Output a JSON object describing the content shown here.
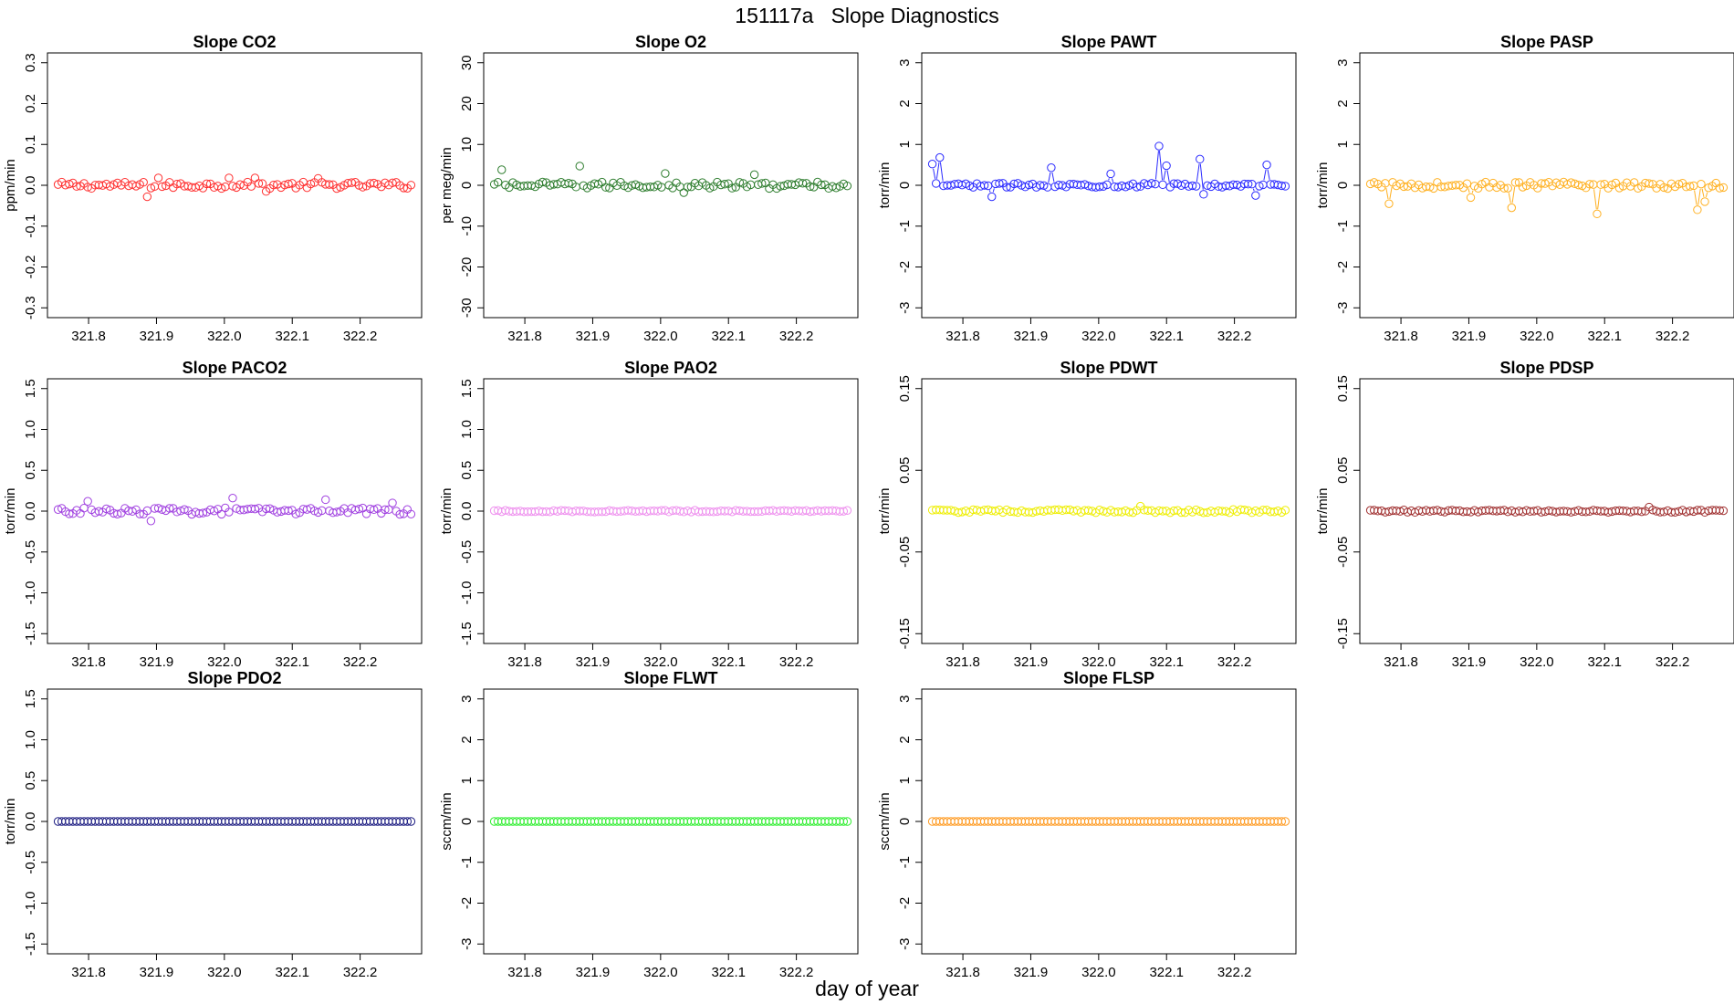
{
  "figure": {
    "title": "151117a   Slope Diagnostics",
    "xlabel": "day of year"
  },
  "chart_data": [
    {
      "type": "scatter",
      "title": "Slope CO2",
      "ylabel": "ppm/min",
      "color": "#ff3030",
      "ylim": [
        -0.3,
        0.3
      ],
      "yticks": [
        -0.3,
        -0.2,
        -0.1,
        0.0,
        0.1,
        0.2,
        0.3
      ],
      "xlim": [
        321.75,
        322.28
      ],
      "xticks": [
        321.8,
        321.9,
        322.0,
        322.1,
        322.2
      ],
      "connect": false,
      "noise": 0.008,
      "spikes": [
        [
          321.888,
          -0.028
        ],
        [
          321.905,
          0.018
        ],
        [
          322.008,
          0.018
        ],
        [
          322.045,
          0.018
        ],
        [
          322.06,
          -0.015
        ],
        [
          322.14,
          0.017
        ]
      ]
    },
    {
      "type": "scatter",
      "title": "Slope O2",
      "ylabel": "per meg/min",
      "color": "#2e7d2e",
      "ylim": [
        -30,
        30
      ],
      "yticks": [
        -30,
        -20,
        -10,
        0,
        10,
        20,
        30
      ],
      "xlim": [
        321.75,
        322.28
      ],
      "xticks": [
        321.8,
        321.9,
        322.0,
        322.1,
        322.2
      ],
      "connect": false,
      "noise": 0.8,
      "spikes": [
        [
          321.765,
          3.8
        ],
        [
          321.88,
          4.7
        ],
        [
          322.006,
          2.9
        ],
        [
          322.14,
          2.6
        ],
        [
          322.035,
          -1.8
        ]
      ]
    },
    {
      "type": "scatter",
      "title": "Slope PAWT",
      "ylabel": "torr/min",
      "color": "#2a2aff",
      "ylim": [
        -3,
        3
      ],
      "yticks": [
        -3,
        -2,
        -1,
        0,
        1,
        2,
        3
      ],
      "xlim": [
        321.75,
        322.28
      ],
      "xticks": [
        321.8,
        321.9,
        322.0,
        322.1,
        322.2
      ],
      "connect": true,
      "noise": 0.05,
      "spikes": [
        [
          321.755,
          0.52
        ],
        [
          321.767,
          0.68
        ],
        [
          321.845,
          -0.28
        ],
        [
          321.93,
          0.43
        ],
        [
          322.02,
          0.28
        ],
        [
          322.09,
          0.96
        ],
        [
          322.102,
          0.48
        ],
        [
          322.148,
          0.64
        ],
        [
          322.152,
          -0.22
        ],
        [
          322.245,
          0.5
        ],
        [
          322.23,
          -0.25
        ]
      ]
    },
    {
      "type": "scatter",
      "title": "Slope PASP",
      "ylabel": "torr/min",
      "color": "#ffb020",
      "ylim": [
        -3,
        3
      ],
      "yticks": [
        -3,
        -2,
        -1,
        0,
        1,
        2,
        3
      ],
      "xlim": [
        321.75,
        322.28
      ],
      "xticks": [
        321.8,
        321.9,
        322.0,
        322.1,
        322.2
      ],
      "connect": true,
      "noise": 0.08,
      "spikes": [
        [
          321.78,
          -0.45
        ],
        [
          321.965,
          -0.55
        ],
        [
          322.09,
          -0.7
        ],
        [
          322.235,
          -0.6
        ],
        [
          322.245,
          -0.4
        ],
        [
          321.905,
          -0.3
        ]
      ]
    },
    {
      "type": "scatter",
      "title": "Slope PACO2",
      "ylabel": "torr/min",
      "color": "#a040e0",
      "ylim": [
        -1.5,
        1.5
      ],
      "yticks": [
        -1.5,
        -1.0,
        -0.5,
        0.0,
        0.5,
        1.0,
        1.5
      ],
      "xlim": [
        321.75,
        322.28
      ],
      "xticks": [
        321.8,
        321.9,
        322.0,
        322.1,
        322.2
      ],
      "connect": false,
      "noise": 0.04,
      "spikes": [
        [
          321.8,
          0.12
        ],
        [
          321.89,
          -0.12
        ],
        [
          322.01,
          0.16
        ],
        [
          322.15,
          0.14
        ],
        [
          322.25,
          0.1
        ]
      ]
    },
    {
      "type": "scatter",
      "title": "Slope PAO2",
      "ylabel": "torr/min",
      "color": "#ee90ee",
      "ylim": [
        -1.5,
        1.5
      ],
      "yticks": [
        -1.5,
        -1.0,
        -0.5,
        0.0,
        0.5,
        1.0,
        1.5
      ],
      "xlim": [
        321.75,
        322.28
      ],
      "xticks": [
        321.8,
        321.9,
        322.0,
        322.1,
        322.2
      ],
      "connect": false,
      "noise": 0.01,
      "spikes": []
    },
    {
      "type": "scatter",
      "title": "Slope PDWT",
      "ylabel": "torr/min",
      "color": "#eeee00",
      "ylim": [
        -0.15,
        0.15
      ],
      "yticks": [
        -0.15,
        -0.05,
        0.05,
        0.15
      ],
      "xlim": [
        321.75,
        322.28
      ],
      "xticks": [
        321.8,
        321.9,
        322.0,
        322.1,
        322.2
      ],
      "connect": false,
      "noise": 0.002,
      "spikes": [
        [
          322.06,
          0.006
        ]
      ]
    },
    {
      "type": "scatter",
      "title": "Slope PDSP",
      "ylabel": "torr/min",
      "color": "#a03030",
      "ylim": [
        -0.15,
        0.15
      ],
      "yticks": [
        -0.15,
        -0.05,
        0.05,
        0.15
      ],
      "xlim": [
        321.75,
        322.28
      ],
      "xticks": [
        321.8,
        321.9,
        322.0,
        322.1,
        322.2
      ],
      "connect": false,
      "noise": 0.0015,
      "spikes": [
        [
          322.163,
          0.005
        ]
      ]
    },
    {
      "type": "scatter",
      "title": "Slope PDO2",
      "ylabel": "torr/min",
      "color": "#1a1a80",
      "ylim": [
        -1.5,
        1.5
      ],
      "yticks": [
        -1.5,
        -1.0,
        -0.5,
        0.0,
        0.5,
        1.0,
        1.5
      ],
      "xlim": [
        321.75,
        322.28
      ],
      "xticks": [
        321.8,
        321.9,
        322.0,
        322.1,
        322.2
      ],
      "connect": false,
      "noise": 0.0,
      "spikes": []
    },
    {
      "type": "scatter",
      "title": "Slope FLWT",
      "ylabel": "sccm/min",
      "color": "#30ee30",
      "ylim": [
        -3,
        3
      ],
      "yticks": [
        -3,
        -2,
        -1,
        0,
        1,
        2,
        3
      ],
      "xlim": [
        321.75,
        322.28
      ],
      "xticks": [
        321.8,
        321.9,
        322.0,
        322.1,
        322.2
      ],
      "connect": false,
      "noise": 0.0,
      "spikes": []
    },
    {
      "type": "scatter",
      "title": "Slope FLSP",
      "ylabel": "sccm/min",
      "color": "#ff9a20",
      "ylim": [
        -3,
        3
      ],
      "yticks": [
        -3,
        -2,
        -1,
        0,
        1,
        2,
        3
      ],
      "xlim": [
        321.75,
        322.28
      ],
      "xticks": [
        321.8,
        321.9,
        322.0,
        322.1,
        322.2
      ],
      "connect": false,
      "noise": 0.0,
      "spikes": []
    }
  ]
}
